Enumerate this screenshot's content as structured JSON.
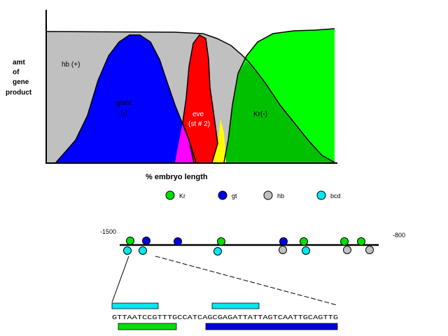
{
  "graph": {
    "y_label_lines": [
      "amt",
      "of",
      "gene",
      "product"
    ],
    "x_label": "% embryo length",
    "regions": {
      "hb": "hb (+)",
      "giant_line1": "giant",
      "giant_line2": "(-)",
      "eve_line1": "eve",
      "eve_line2": "(st # 2)",
      "kr": "Kr(-)"
    }
  },
  "legend": [
    {
      "label": "Kr",
      "color": "#00e000"
    },
    {
      "label": "gt",
      "color": "#0000e0"
    },
    {
      "label": "hb",
      "color": "#c0c0c0"
    },
    {
      "label": "bcd",
      "color": "#00e8f0"
    }
  ],
  "colors": {
    "hb": "#c0c0c0",
    "giant": "#0000ff",
    "eve": "#ff0000",
    "kr": "#00ff00",
    "kr_overlap": "#00c000",
    "magenta": "#ff00ff",
    "yellow": "#ffff00",
    "bcd": "#00e8f0"
  },
  "promoter": {
    "left_label": "-1500",
    "right_label": "-800",
    "above_sites": [
      "Kr",
      "gt",
      "gt",
      "Kr",
      "gt",
      "Kr",
      "Kr",
      "Kr"
    ],
    "below_sites": [
      "bcd",
      "bcd",
      "bcd",
      "hb",
      "bcd",
      "hb",
      "hb"
    ]
  },
  "sequence": {
    "text": "GTTAATCCGTTTGCCATCAGCGAGATTATTAGTCAATTGCAGTTG"
  }
}
